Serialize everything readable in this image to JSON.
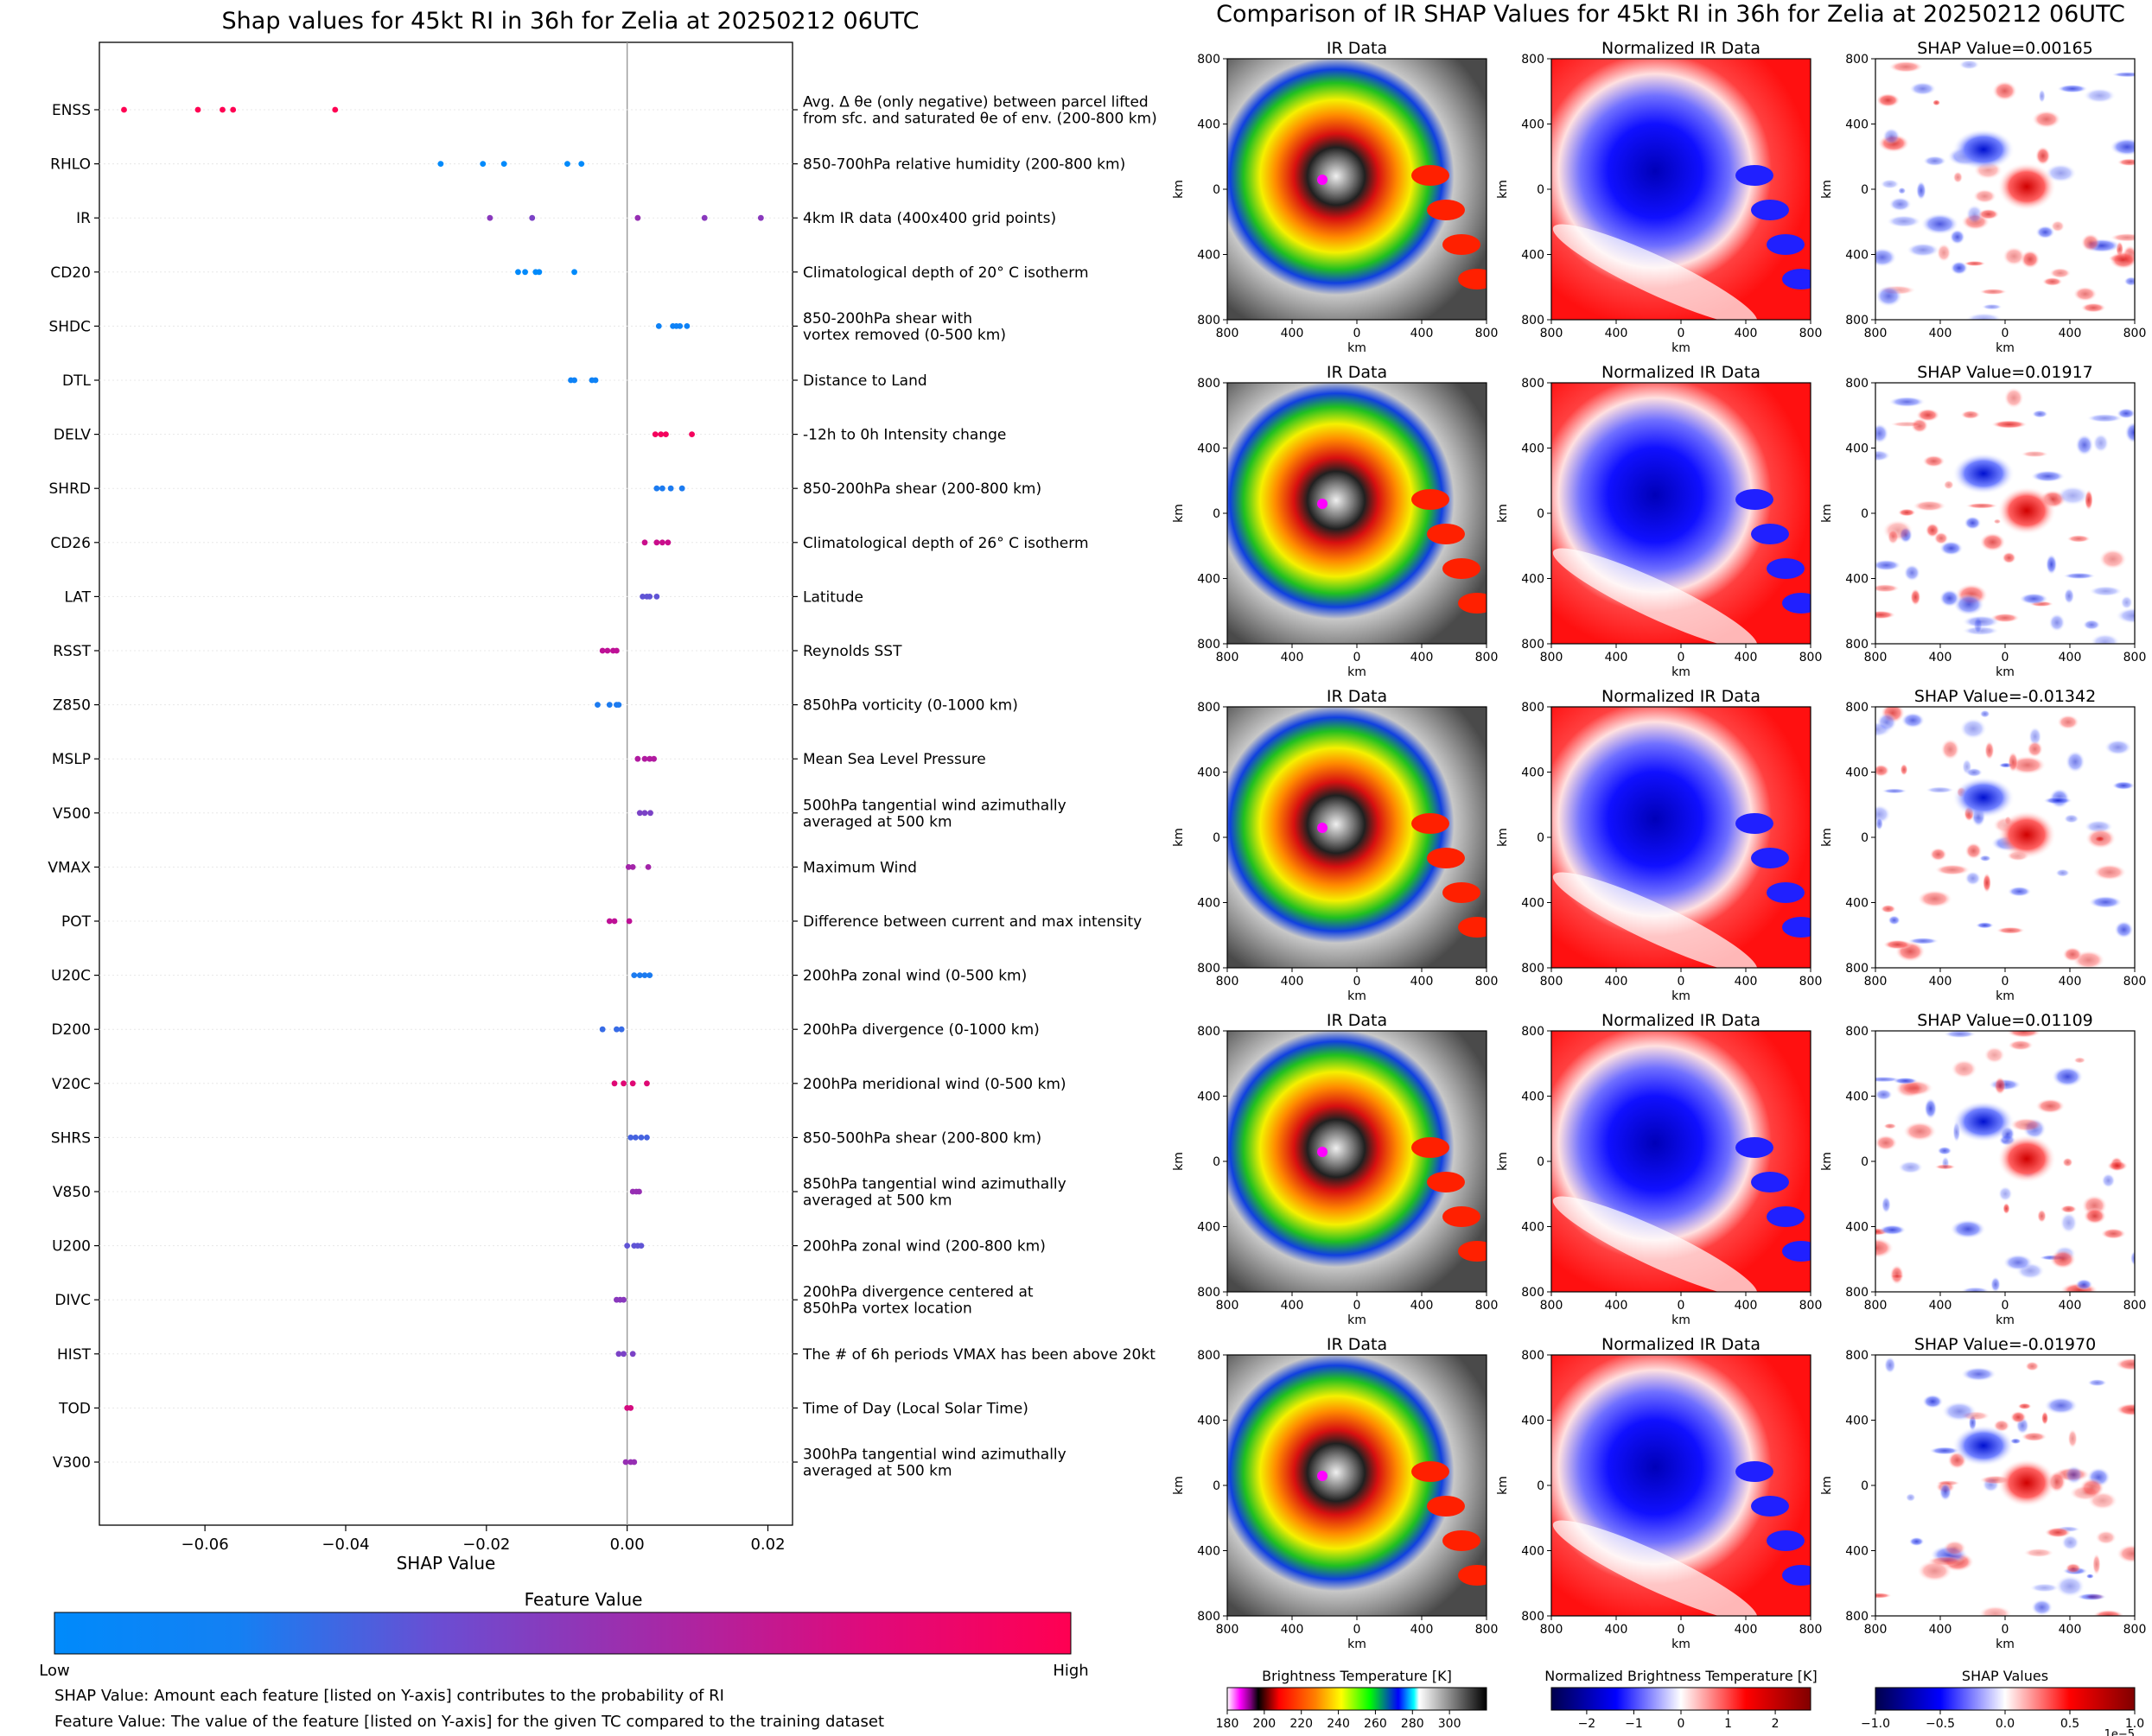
{
  "left_title": "Shap values for 45kt RI in 36h for Zelia at 20250212 06UTC",
  "right_title": "Comparison of IR SHAP Values for 45kt RI in 36h for Zelia at 20250212 06UTC",
  "notes": [
    "SHAP Value: Amount each feature [listed on Y-axis] contributes to the probability of RI",
    "Feature Value: The value of the feature [listed on Y-axis] for the given TC compared to the training dataset"
  ],
  "colors": {
    "low": "#008afb",
    "mid": "#7c3fc8",
    "high": "#ff0052"
  },
  "chart_data": [
    {
      "type": "scatter",
      "title": "Shap values for 45kt RI in 36h for Zelia at 20250212 06UTC",
      "xlabel": "SHAP Value",
      "xlim": [
        -0.075,
        0.0235
      ],
      "xticks": [
        "−0.06",
        "−0.04",
        "−0.02",
        "0.00",
        "0.02"
      ],
      "xtick_values": [
        -0.06,
        -0.04,
        -0.02,
        0.0,
        0.02
      ],
      "grid": false,
      "colorbar": {
        "title": "Feature Value",
        "low_label": "Low",
        "high_label": "High"
      },
      "features": [
        {
          "name": "ENSS",
          "desc": [
            "Avg. Δ θe (only negative) between parcel lifted",
            "from sfc. and saturated θe of env. (200-800 km)"
          ],
          "points": [
            [
              -0.0715,
              1.0
            ],
            [
              -0.061,
              1.0
            ],
            [
              -0.0575,
              1.0
            ],
            [
              -0.056,
              1.0
            ],
            [
              -0.0415,
              1.0
            ]
          ]
        },
        {
          "name": "RHLO",
          "desc": [
            "850-700hPa relative humidity (200-800 km)"
          ],
          "points": [
            [
              -0.0265,
              0.0
            ],
            [
              -0.0205,
              0.0
            ],
            [
              -0.0175,
              0.0
            ],
            [
              -0.0085,
              0.0
            ],
            [
              -0.0065,
              0.0
            ]
          ]
        },
        {
          "name": "IR",
          "desc": [
            "4km IR data (400x400 grid points)"
          ],
          "points": [
            [
              -0.0195,
              0.5
            ],
            [
              -0.0135,
              0.45
            ],
            [
              0.0015,
              0.55
            ],
            [
              0.011,
              0.5
            ],
            [
              0.019,
              0.5
            ]
          ]
        },
        {
          "name": "CD20",
          "desc": [
            "Climatological depth of 20° C isotherm"
          ],
          "points": [
            [
              -0.0155,
              0.0
            ],
            [
              -0.0145,
              0.0
            ],
            [
              -0.013,
              0.0
            ],
            [
              -0.0125,
              0.0
            ],
            [
              -0.0075,
              0.0
            ]
          ]
        },
        {
          "name": "SHDC",
          "desc": [
            "850-200hPa shear with",
            "vortex removed (0-500 km)"
          ],
          "points": [
            [
              0.0045,
              0.05
            ],
            [
              0.0065,
              0.05
            ],
            [
              0.007,
              0.05
            ],
            [
              0.0075,
              0.05
            ],
            [
              0.0085,
              0.05
            ]
          ]
        },
        {
          "name": "DTL",
          "desc": [
            "Distance to Land"
          ],
          "points": [
            [
              -0.008,
              0.05
            ],
            [
              -0.0075,
              0.05
            ],
            [
              -0.005,
              0.05
            ],
            [
              -0.0045,
              0.05
            ]
          ]
        },
        {
          "name": "DELV",
          "desc": [
            "-12h to 0h Intensity change"
          ],
          "points": [
            [
              0.004,
              0.95
            ],
            [
              0.0048,
              0.95
            ],
            [
              0.0055,
              0.95
            ],
            [
              0.0092,
              0.95
            ]
          ]
        },
        {
          "name": "SHRD",
          "desc": [
            "850-200hPa shear (200-800 km)"
          ],
          "points": [
            [
              0.0042,
              0.1
            ],
            [
              0.005,
              0.1
            ],
            [
              0.0062,
              0.1
            ],
            [
              0.0078,
              0.1
            ]
          ]
        },
        {
          "name": "CD26",
          "desc": [
            "Climatological depth of 26° C isotherm"
          ],
          "points": [
            [
              0.0025,
              0.75
            ],
            [
              0.0042,
              0.75
            ],
            [
              0.005,
              0.75
            ],
            [
              0.0058,
              0.75
            ]
          ]
        },
        {
          "name": "LAT",
          "desc": [
            "Latitude"
          ],
          "points": [
            [
              0.0022,
              0.35
            ],
            [
              0.0028,
              0.35
            ],
            [
              0.0032,
              0.35
            ],
            [
              0.0042,
              0.35
            ]
          ]
        },
        {
          "name": "RSST",
          "desc": [
            "Reynolds SST"
          ],
          "points": [
            [
              -0.0035,
              0.7
            ],
            [
              -0.0028,
              0.7
            ],
            [
              -0.002,
              0.7
            ],
            [
              -0.0015,
              0.7
            ]
          ]
        },
        {
          "name": "Z850",
          "desc": [
            "850hPa vorticity (0-1000 km)"
          ],
          "points": [
            [
              -0.0042,
              0.1
            ],
            [
              -0.0025,
              0.1
            ],
            [
              -0.0015,
              0.1
            ],
            [
              -0.0012,
              0.1
            ]
          ]
        },
        {
          "name": "MSLP",
          "desc": [
            "Mean Sea Level Pressure"
          ],
          "points": [
            [
              0.0015,
              0.65
            ],
            [
              0.0025,
              0.65
            ],
            [
              0.0032,
              0.65
            ],
            [
              0.0038,
              0.65
            ]
          ]
        },
        {
          "name": "V500",
          "desc": [
            "500hPa tangential wind azimuthally",
            "averaged at 500 km"
          ],
          "points": [
            [
              0.0018,
              0.45
            ],
            [
              0.0025,
              0.45
            ],
            [
              0.0033,
              0.45
            ]
          ]
        },
        {
          "name": "VMAX",
          "desc": [
            "Maximum Wind"
          ],
          "points": [
            [
              0.0002,
              0.6
            ],
            [
              0.0008,
              0.6
            ],
            [
              0.003,
              0.6
            ]
          ]
        },
        {
          "name": "POT",
          "desc": [
            "Difference between current and max intensity"
          ],
          "points": [
            [
              -0.0025,
              0.7
            ],
            [
              -0.0018,
              0.7
            ],
            [
              0.0003,
              0.7
            ]
          ]
        },
        {
          "name": "U20C",
          "desc": [
            "200hPa zonal wind (0-500 km)"
          ],
          "points": [
            [
              0.001,
              0.1
            ],
            [
              0.0018,
              0.1
            ],
            [
              0.0025,
              0.1
            ],
            [
              0.0032,
              0.1
            ]
          ]
        },
        {
          "name": "D200",
          "desc": [
            "200hPa divergence (0-1000 km)"
          ],
          "points": [
            [
              -0.0035,
              0.2
            ],
            [
              -0.0015,
              0.2
            ],
            [
              -0.0008,
              0.2
            ]
          ]
        },
        {
          "name": "V20C",
          "desc": [
            "200hPa meridional wind (0-500 km)"
          ],
          "points": [
            [
              -0.0018,
              0.85
            ],
            [
              -0.0005,
              0.85
            ],
            [
              0.0008,
              0.85
            ],
            [
              0.0028,
              0.85
            ]
          ]
        },
        {
          "name": "SHRS",
          "desc": [
            "850-500hPa shear (200-800 km)"
          ],
          "points": [
            [
              0.0005,
              0.25
            ],
            [
              0.0012,
              0.25
            ],
            [
              0.002,
              0.25
            ],
            [
              0.0028,
              0.25
            ]
          ]
        },
        {
          "name": "V850",
          "desc": [
            "850hPa tangential wind azimuthally",
            "averaged at 500 km"
          ],
          "points": [
            [
              0.0008,
              0.55
            ],
            [
              0.0013,
              0.55
            ],
            [
              0.0017,
              0.55
            ]
          ]
        },
        {
          "name": "U200",
          "desc": [
            "200hPa zonal wind (200-800 km)"
          ],
          "points": [
            [
              0.0,
              0.35
            ],
            [
              0.001,
              0.35
            ],
            [
              0.0015,
              0.35
            ],
            [
              0.002,
              0.35
            ]
          ]
        },
        {
          "name": "DIVC",
          "desc": [
            "200hPa divergence centered at",
            "850hPa vortex location"
          ],
          "points": [
            [
              -0.0015,
              0.5
            ],
            [
              -0.001,
              0.5
            ],
            [
              -0.0005,
              0.5
            ]
          ]
        },
        {
          "name": "HIST",
          "desc": [
            "The # of 6h periods VMAX has been above 20kt"
          ],
          "points": [
            [
              -0.0012,
              0.45
            ],
            [
              -0.0005,
              0.45
            ],
            [
              0.0008,
              0.45
            ]
          ]
        },
        {
          "name": "TOD",
          "desc": [
            "Time of Day (Local Solar Time)"
          ],
          "points": [
            [
              0.0,
              0.8
            ],
            [
              0.0005,
              0.8
            ]
          ]
        },
        {
          "name": "V300",
          "desc": [
            "300hPa tangential wind azimuthally",
            "averaged at 500 km"
          ],
          "points": [
            [
              -0.0002,
              0.55
            ],
            [
              0.0005,
              0.55
            ],
            [
              0.001,
              0.55
            ]
          ]
        }
      ]
    },
    {
      "type": "heatmap",
      "title": "Comparison of IR SHAP Values for 45kt RI in 36h for Zelia at 20250212 06UTC",
      "column_titles": [
        "IR Data",
        "Normalized IR Data"
      ],
      "shap_titles": [
        "SHAP Value=0.00165",
        "SHAP Value=0.01917",
        "SHAP Value=-0.01342",
        "SHAP Value=0.01109",
        "SHAP Value=-0.01970"
      ],
      "shap_values": [
        0.00165,
        0.01917,
        -0.01342,
        0.01109,
        -0.0197
      ],
      "xlabel": "km",
      "ylabel": "km",
      "xticks": [
        "800",
        "400",
        "0",
        "400",
        "800"
      ],
      "yticks": [
        "800",
        "400",
        "0",
        "400",
        "800"
      ],
      "colorbars": [
        {
          "title": "Brightness Temperature [K]",
          "ticks": [
            "180",
            "200",
            "220",
            "240",
            "260",
            "280",
            "300"
          ]
        },
        {
          "title": "Normalized Brightness Temperature [K]",
          "ticks": [
            "−2",
            "−1",
            "0",
            "1",
            "2"
          ]
        },
        {
          "title": "SHAP Values",
          "ticks": [
            "−1.0",
            "−0.5",
            "0.0",
            "0.5",
            "1.0"
          ],
          "scale_label": "1e−5"
        }
      ]
    }
  ]
}
